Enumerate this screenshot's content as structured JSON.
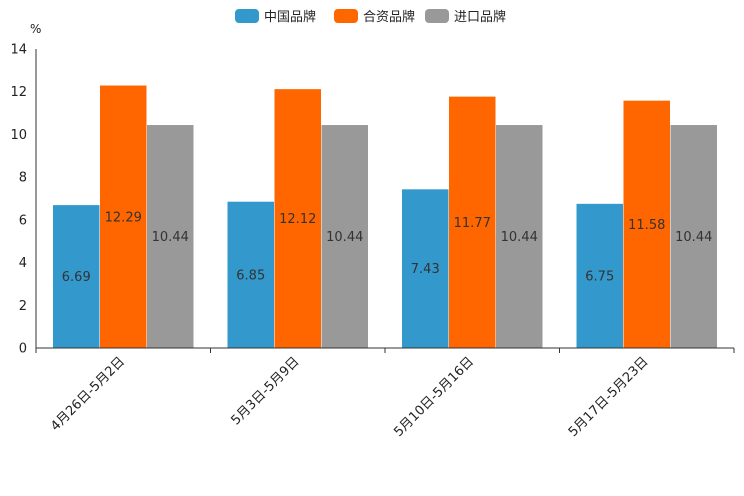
{
  "chart_data": {
    "type": "bar",
    "title": "",
    "xlabel": "",
    "ylabel": "%",
    "ylim": [
      0,
      14
    ],
    "yticks": [
      0,
      2,
      4,
      6,
      8,
      10,
      12,
      14
    ],
    "grid": false,
    "legend_position": "top-center",
    "categories": [
      "4月26日-5月2日",
      "5月3日-5月9日",
      "5月10日-5月16日",
      "5月17日-5月23日"
    ],
    "series": [
      {
        "name": "中国品牌",
        "color": "#3399CC",
        "values": [
          6.69,
          6.85,
          7.43,
          6.75
        ]
      },
      {
        "name": "合资品牌",
        "color": "#FF6600",
        "values": [
          12.29,
          12.12,
          11.77,
          11.58
        ]
      },
      {
        "name": "进口品牌",
        "color": "#999999",
        "values": [
          10.44,
          10.44,
          10.44,
          10.44
        ]
      }
    ]
  }
}
